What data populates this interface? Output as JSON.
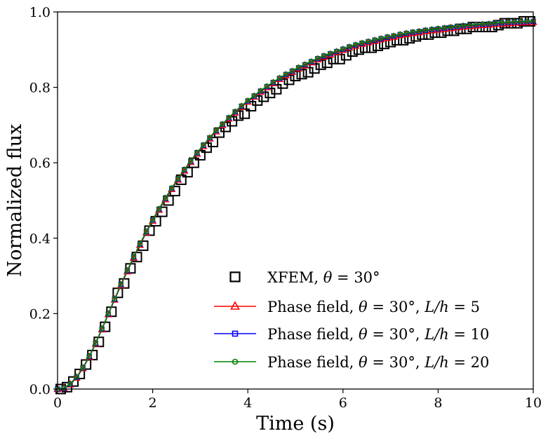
{
  "chart_data": {
    "type": "line",
    "title": "",
    "xlabel": "Time (s)",
    "ylabel": "Normalized flux",
    "xlim": [
      0,
      10
    ],
    "ylim": [
      0,
      1.0
    ],
    "x_ticks": [
      0,
      2,
      4,
      6,
      8,
      10
    ],
    "y_ticks": [
      0.0,
      0.2,
      0.4,
      0.6,
      0.8,
      1.0
    ],
    "x_tick_labels": [
      "0",
      "2",
      "4",
      "6",
      "8",
      "10"
    ],
    "y_tick_labels": [
      "0.0",
      "0.2",
      "0.4",
      "0.6",
      "0.8",
      "1.0"
    ],
    "grid": false,
    "legend_position": "lower-right",
    "series": [
      {
        "name": "XFEM, θ = 30°",
        "legend_parts": [
          "XFEM, ",
          "θ",
          " = 30°"
        ],
        "color": "#000000",
        "marker": "square",
        "line": false,
        "x": [
          0.067,
          0.2,
          0.333,
          0.467,
          0.6,
          0.733,
          0.867,
          1.0,
          1.133,
          1.267,
          1.4,
          1.533,
          1.667,
          1.8,
          1.933,
          2.067,
          2.2,
          2.333,
          2.467,
          2.6,
          2.733,
          2.867,
          3.0,
          3.133,
          3.267,
          3.4,
          3.533,
          3.667,
          3.8,
          3.933,
          4.067,
          4.2,
          4.333,
          4.467,
          4.6,
          4.733,
          4.867,
          5.0,
          5.133,
          5.267,
          5.4,
          5.533,
          5.667,
          5.8,
          5.933,
          6.067,
          6.2,
          6.333,
          6.467,
          6.6,
          6.733,
          6.867,
          7.0,
          7.133,
          7.267,
          7.4,
          7.533,
          7.667,
          7.8,
          7.933,
          8.067,
          8.2,
          8.333,
          8.467,
          8.6,
          8.733,
          8.867,
          9.0,
          9.133,
          9.267,
          9.4,
          9.533,
          9.667,
          9.8,
          9.933
        ],
        "y": [
          0.0,
          0.005,
          0.02,
          0.04,
          0.065,
          0.09,
          0.125,
          0.165,
          0.205,
          0.255,
          0.28,
          0.32,
          0.35,
          0.38,
          0.42,
          0.445,
          0.47,
          0.5,
          0.525,
          0.555,
          0.575,
          0.6,
          0.62,
          0.64,
          0.655,
          0.68,
          0.695,
          0.71,
          0.725,
          0.73,
          0.75,
          0.765,
          0.775,
          0.785,
          0.795,
          0.81,
          0.82,
          0.83,
          0.835,
          0.84,
          0.85,
          0.86,
          0.865,
          0.875,
          0.875,
          0.885,
          0.895,
          0.9,
          0.905,
          0.905,
          0.91,
          0.915,
          0.92,
          0.925,
          0.925,
          0.93,
          0.935,
          0.94,
          0.94,
          0.945,
          0.945,
          0.95,
          0.95,
          0.955,
          0.955,
          0.96,
          0.96,
          0.96,
          0.96,
          0.965,
          0.97,
          0.97,
          0.97,
          0.975,
          0.975
        ]
      },
      {
        "name": "Phase field, θ = 30°, L/h = 5",
        "legend_parts": [
          "Phase field, ",
          "θ",
          " = 30°, ",
          "L/h",
          " = 5"
        ],
        "color": "#ff0000",
        "marker": "triangle",
        "line": true,
        "x": [
          0.0,
          0.133,
          0.267,
          0.4,
          0.533,
          0.667,
          0.8,
          0.933,
          1.067,
          1.2,
          1.333,
          1.467,
          1.6,
          1.733,
          1.867,
          2.0,
          2.133,
          2.267,
          2.4,
          2.533,
          2.667,
          2.8,
          2.933,
          3.067,
          3.2,
          3.333,
          3.467,
          3.6,
          3.733,
          3.867,
          4.0,
          4.133,
          4.267,
          4.4,
          4.533,
          4.667,
          4.8,
          4.933,
          5.067,
          5.2,
          5.333,
          5.467,
          5.6,
          5.733,
          5.867,
          6.0,
          6.133,
          6.267,
          6.4,
          6.533,
          6.667,
          6.8,
          6.933,
          7.067,
          7.2,
          7.333,
          7.467,
          7.6,
          7.733,
          7.867,
          8.0,
          8.133,
          8.267,
          8.4,
          8.533,
          8.667,
          8.8,
          8.933,
          9.067,
          9.2,
          9.333,
          9.467,
          9.6,
          9.733,
          9.867,
          10.0
        ],
        "y": [
          0.0,
          0.002,
          0.012,
          0.03,
          0.055,
          0.085,
          0.12,
          0.158,
          0.198,
          0.237,
          0.275,
          0.312,
          0.348,
          0.382,
          0.415,
          0.446,
          0.475,
          0.503,
          0.53,
          0.555,
          0.579,
          0.602,
          0.624,
          0.644,
          0.664,
          0.683,
          0.7,
          0.717,
          0.733,
          0.748,
          0.762,
          0.775,
          0.788,
          0.8,
          0.811,
          0.822,
          0.832,
          0.841,
          0.85,
          0.858,
          0.866,
          0.874,
          0.881,
          0.887,
          0.893,
          0.899,
          0.905,
          0.91,
          0.915,
          0.919,
          0.923,
          0.927,
          0.931,
          0.934,
          0.938,
          0.941,
          0.944,
          0.946,
          0.949,
          0.951,
          0.953,
          0.955,
          0.957,
          0.959,
          0.961,
          0.962,
          0.964,
          0.965,
          0.966,
          0.968,
          0.969,
          0.97,
          0.971,
          0.972,
          0.972,
          0.973
        ]
      },
      {
        "name": "Phase field, θ = 30°, L/h = 10",
        "legend_parts": [
          "Phase field, ",
          "θ",
          " = 30°, ",
          "L/h",
          " = 10"
        ],
        "color": "#0000ff",
        "marker": "square-small",
        "line": true,
        "x": [
          0.0,
          0.133,
          0.267,
          0.4,
          0.533,
          0.667,
          0.8,
          0.933,
          1.067,
          1.2,
          1.333,
          1.467,
          1.6,
          1.733,
          1.867,
          2.0,
          2.133,
          2.267,
          2.4,
          2.533,
          2.667,
          2.8,
          2.933,
          3.067,
          3.2,
          3.333,
          3.467,
          3.6,
          3.733,
          3.867,
          4.0,
          4.133,
          4.267,
          4.4,
          4.533,
          4.667,
          4.8,
          4.933,
          5.067,
          5.2,
          5.333,
          5.467,
          5.6,
          5.733,
          5.867,
          6.0,
          6.133,
          6.267,
          6.4,
          6.533,
          6.667,
          6.8,
          6.933,
          7.067,
          7.2,
          7.333,
          7.467,
          7.6,
          7.733,
          7.867,
          8.0,
          8.133,
          8.267,
          8.4,
          8.533,
          8.667,
          8.8,
          8.933,
          9.067,
          9.2,
          9.333,
          9.467,
          9.6,
          9.733,
          9.867,
          10.0
        ],
        "y": [
          0.0,
          0.002,
          0.013,
          0.031,
          0.056,
          0.086,
          0.121,
          0.159,
          0.199,
          0.238,
          0.277,
          0.314,
          0.35,
          0.384,
          0.417,
          0.448,
          0.477,
          0.505,
          0.532,
          0.557,
          0.581,
          0.604,
          0.626,
          0.646,
          0.666,
          0.685,
          0.702,
          0.719,
          0.735,
          0.75,
          0.764,
          0.777,
          0.79,
          0.802,
          0.813,
          0.824,
          0.834,
          0.843,
          0.852,
          0.86,
          0.868,
          0.876,
          0.883,
          0.889,
          0.895,
          0.901,
          0.907,
          0.912,
          0.917,
          0.921,
          0.925,
          0.929,
          0.933,
          0.936,
          0.94,
          0.943,
          0.946,
          0.948,
          0.951,
          0.953,
          0.955,
          0.957,
          0.959,
          0.961,
          0.963,
          0.964,
          0.966,
          0.967,
          0.968,
          0.97,
          0.971,
          0.972,
          0.973,
          0.974,
          0.974,
          0.975
        ]
      },
      {
        "name": "Phase field, θ = 30°, L/h = 20",
        "legend_parts": [
          "Phase field, ",
          "θ",
          " = 30°, ",
          "L/h",
          " = 20"
        ],
        "color": "#008000",
        "marker": "circle",
        "line": true,
        "x": [
          0.0,
          0.133,
          0.267,
          0.4,
          0.533,
          0.667,
          0.8,
          0.933,
          1.067,
          1.2,
          1.333,
          1.467,
          1.6,
          1.733,
          1.867,
          2.0,
          2.133,
          2.267,
          2.4,
          2.533,
          2.667,
          2.8,
          2.933,
          3.067,
          3.2,
          3.333,
          3.467,
          3.6,
          3.733,
          3.867,
          4.0,
          4.133,
          4.267,
          4.4,
          4.533,
          4.667,
          4.8,
          4.933,
          5.067,
          5.2,
          5.333,
          5.467,
          5.6,
          5.733,
          5.867,
          6.0,
          6.133,
          6.267,
          6.4,
          6.533,
          6.667,
          6.8,
          6.933,
          7.067,
          7.2,
          7.333,
          7.467,
          7.6,
          7.733,
          7.867,
          8.0,
          8.133,
          8.267,
          8.4,
          8.533,
          8.667,
          8.8,
          8.933,
          9.067,
          9.2,
          9.333,
          9.467,
          9.6,
          9.733,
          9.867,
          10.0
        ],
        "y": [
          0.0,
          0.003,
          0.014,
          0.032,
          0.057,
          0.087,
          0.122,
          0.16,
          0.2,
          0.239,
          0.278,
          0.315,
          0.351,
          0.385,
          0.418,
          0.449,
          0.478,
          0.506,
          0.533,
          0.558,
          0.582,
          0.605,
          0.627,
          0.647,
          0.667,
          0.686,
          0.703,
          0.72,
          0.736,
          0.751,
          0.765,
          0.778,
          0.791,
          0.803,
          0.814,
          0.825,
          0.835,
          0.844,
          0.853,
          0.861,
          0.869,
          0.877,
          0.884,
          0.89,
          0.896,
          0.902,
          0.908,
          0.913,
          0.918,
          0.922,
          0.926,
          0.93,
          0.934,
          0.937,
          0.941,
          0.944,
          0.947,
          0.949,
          0.952,
          0.954,
          0.956,
          0.958,
          0.96,
          0.962,
          0.964,
          0.965,
          0.967,
          0.968,
          0.969,
          0.971,
          0.972,
          0.973,
          0.974,
          0.975,
          0.975,
          0.976
        ]
      }
    ]
  }
}
